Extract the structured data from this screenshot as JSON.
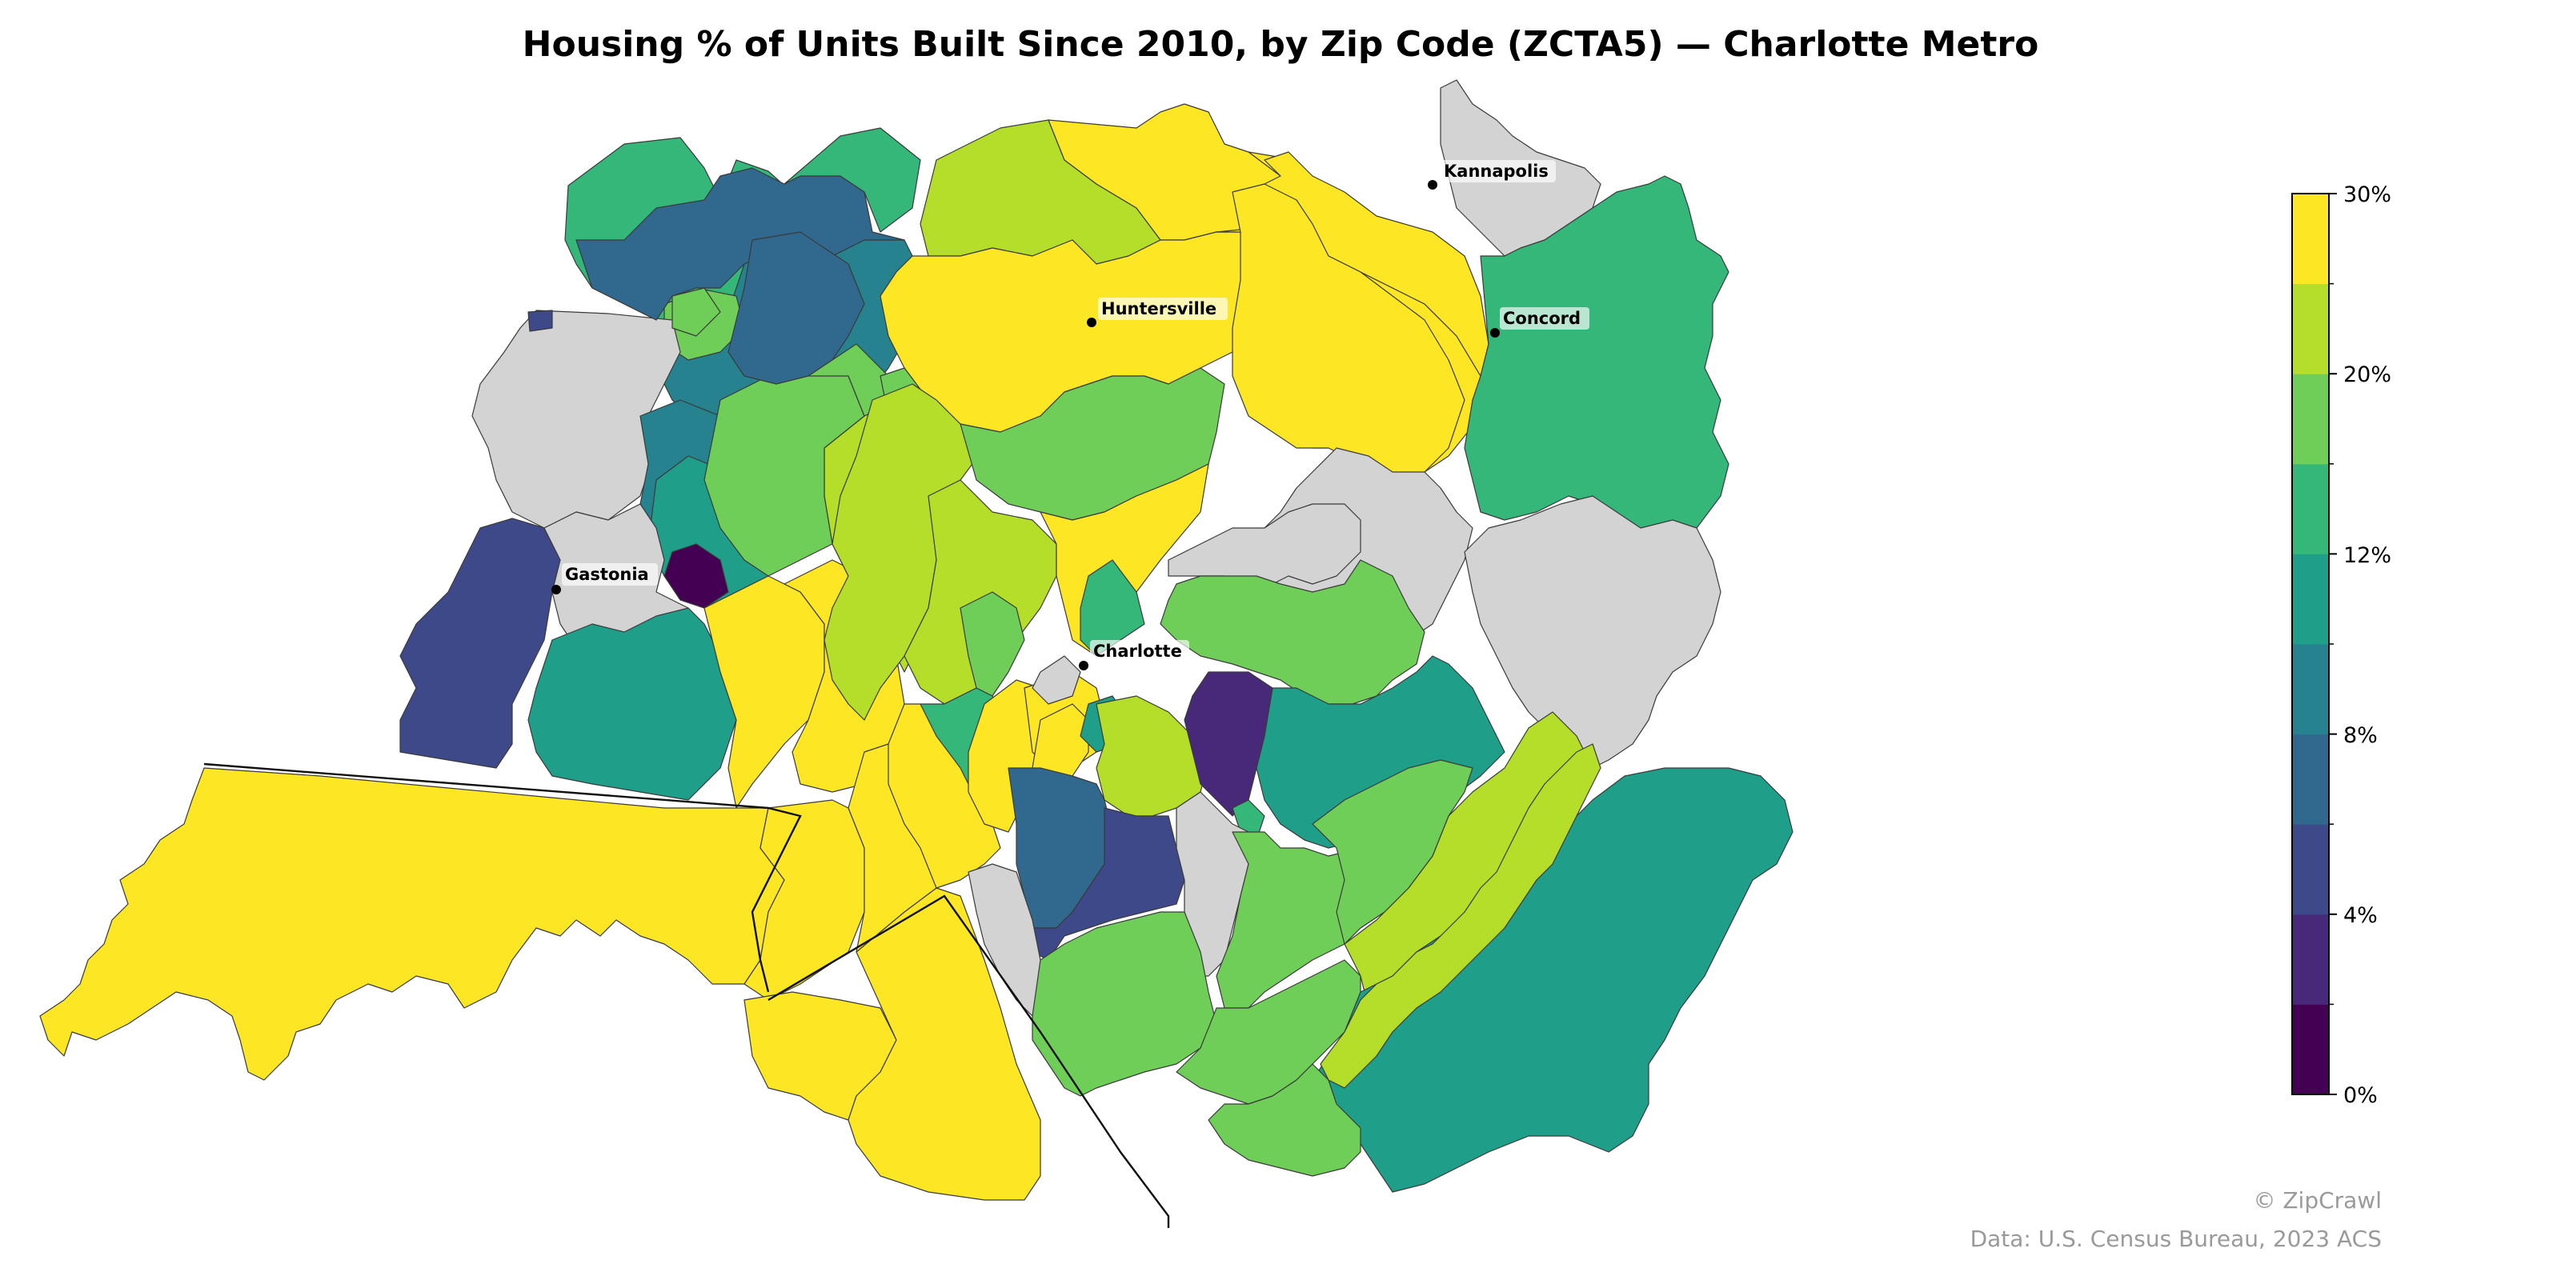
{
  "title": "Housing % of Units Built Since 2010, by Zip Code (ZCTA5) — Charlotte Metro",
  "colorbar": {
    "min": 0,
    "max": 30,
    "tick_labels": [
      "30%",
      "20%",
      "12%",
      "8%",
      "4%",
      "0%"
    ],
    "bands": [
      "#440154",
      "#482878",
      "#3e4989",
      "#31688e",
      "#26828e",
      "#1f9e89",
      "#35b779",
      "#6ece58",
      "#b5de2b",
      "#fde725"
    ],
    "no_data_color": "#d3d3d3"
  },
  "cities": [
    {
      "name": "Kannapolis"
    },
    {
      "name": "Huntersville"
    },
    {
      "name": "Concord"
    },
    {
      "name": "Gastonia"
    },
    {
      "name": "Charlotte"
    }
  ],
  "footer": {
    "copyright": "© ZipCrawl",
    "source": "Data: U.S. Census Bureau, 2023 ACS"
  }
}
